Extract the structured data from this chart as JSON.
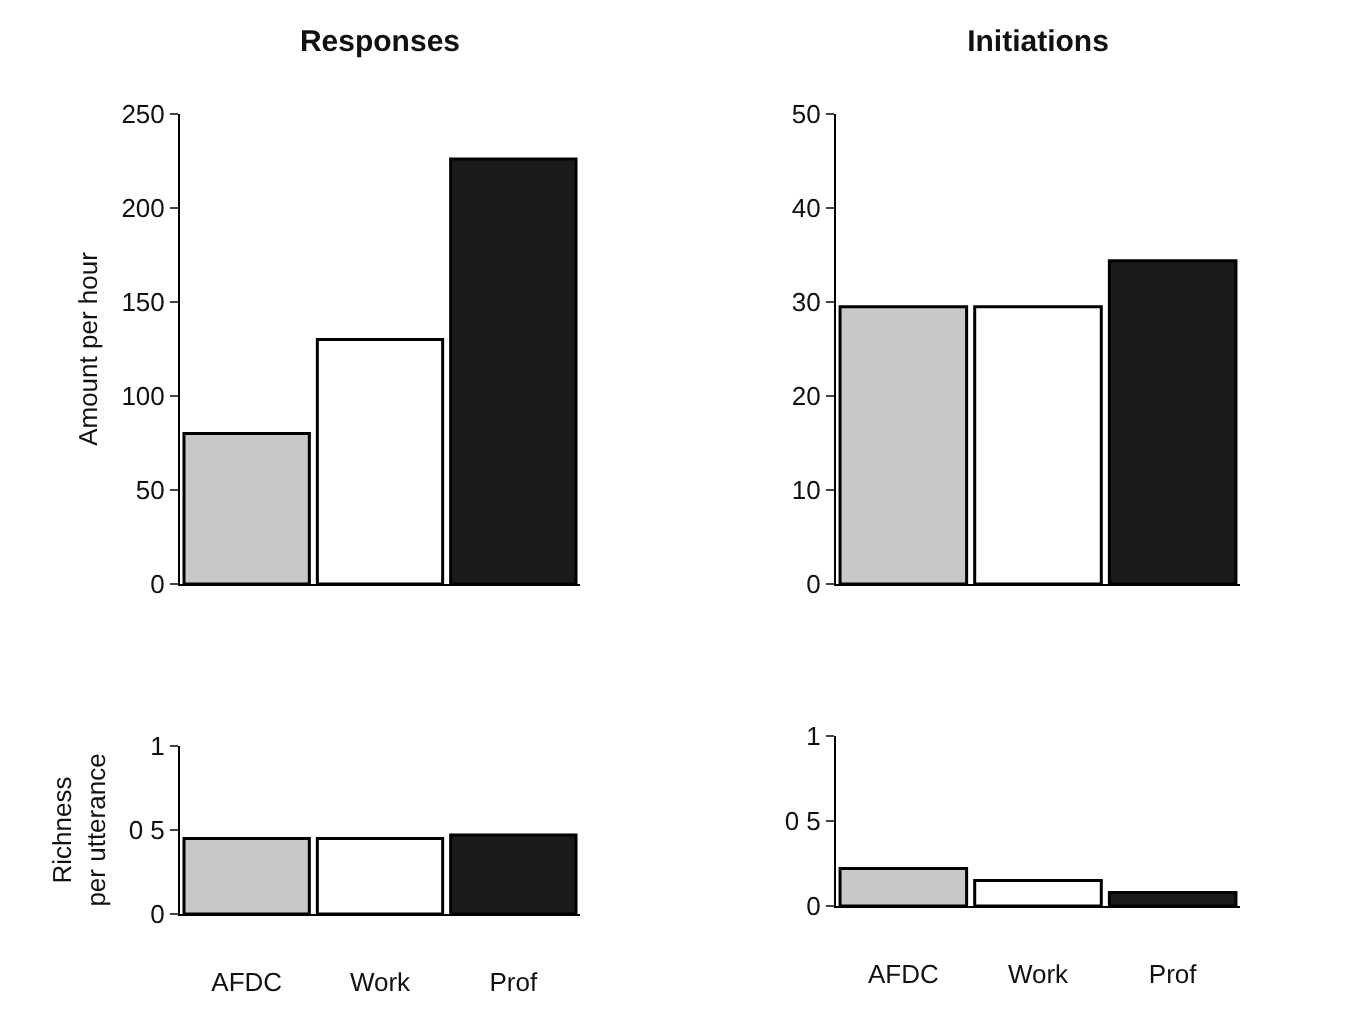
{
  "chart_data": [
    {
      "type": "bar",
      "title": "Responses",
      "ylabel": "Amount per hour",
      "categories": [
        null,
        null,
        null
      ],
      "values": [
        80,
        130,
        226
      ],
      "colors": [
        "#c8c8c8",
        "#ffffff",
        "#1a1a1a"
      ],
      "ylim": [
        0,
        250
      ],
      "yticks": [
        0,
        50,
        100,
        150,
        200,
        250
      ],
      "tick_labels": "y"
    },
    {
      "type": "bar",
      "title": "Initiations",
      "categories": [
        null,
        null,
        null
      ],
      "values": [
        29.5,
        29.5,
        34.4
      ],
      "colors": [
        "#c8c8c8",
        "#ffffff",
        "#1a1a1a"
      ],
      "ylim": [
        0,
        50
      ],
      "yticks": [
        0,
        10,
        20,
        30,
        40,
        50
      ],
      "tick_labels": "y"
    },
    {
      "type": "bar",
      "ylabel": "Richness\nper utterance",
      "categories": [
        "AFDC",
        "Work",
        "Prof"
      ],
      "values": [
        0.45,
        0.45,
        0.47
      ],
      "colors": [
        "#c8c8c8",
        "#ffffff",
        "#1a1a1a"
      ],
      "ylim": [
        0,
        1
      ],
      "yticks": [
        0,
        {
          "value": 0.5,
          "label": "0 5"
        },
        1
      ]
    },
    {
      "type": "bar",
      "categories": [
        "AFDC",
        "Work",
        "Prof"
      ],
      "values": [
        0.22,
        0.15,
        0.08
      ],
      "colors": [
        "#c8c8c8",
        "#ffffff",
        "#1a1a1a"
      ],
      "ylim": [
        0,
        1
      ],
      "yticks": [
        0,
        {
          "value": 0.5,
          "label": "0 5"
        },
        1
      ]
    }
  ]
}
